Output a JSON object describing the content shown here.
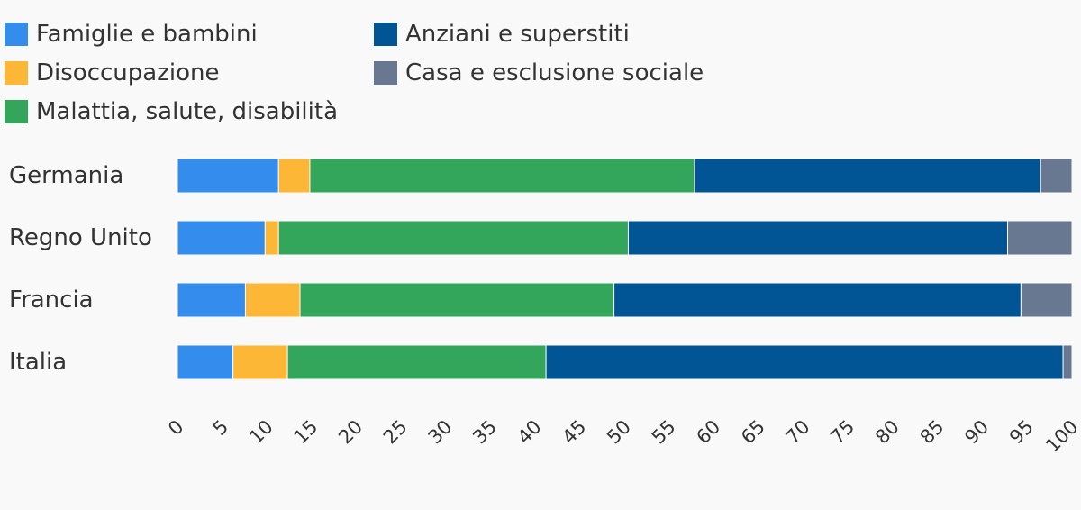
{
  "chart_data": {
    "type": "bar",
    "orientation": "horizontal",
    "stacked": true,
    "categories": [
      "Germania",
      "Regno Unito",
      "Francia",
      "Italia"
    ],
    "series": [
      {
        "name": "Famiglie e bambini",
        "color": "#348ced",
        "values": [
          11.3,
          9.8,
          7.6,
          6.2
        ]
      },
      {
        "name": "Disoccupazione",
        "color": "#fdb737",
        "values": [
          3.5,
          1.5,
          6.1,
          6.1
        ]
      },
      {
        "name": "Malattia, salute, disabilità",
        "color": "#33a65b",
        "values": [
          43.0,
          39.1,
          35.1,
          28.9
        ]
      },
      {
        "name": "Anziani e superstiti",
        "color": "#025594",
        "values": [
          38.7,
          42.4,
          45.5,
          57.8
        ]
      },
      {
        "name": "Casa e esclusione sociale",
        "color": "#687890",
        "values": [
          3.5,
          7.2,
          5.7,
          1.0
        ]
      }
    ],
    "xlim": [
      0,
      100
    ],
    "xticks": [
      0,
      5,
      10,
      15,
      20,
      25,
      30,
      35,
      40,
      45,
      50,
      55,
      60,
      65,
      70,
      75,
      80,
      85,
      90,
      95,
      100
    ],
    "title": "",
    "xlabel": "",
    "ylabel": "",
    "grid": false,
    "legend_position": "top-left"
  }
}
